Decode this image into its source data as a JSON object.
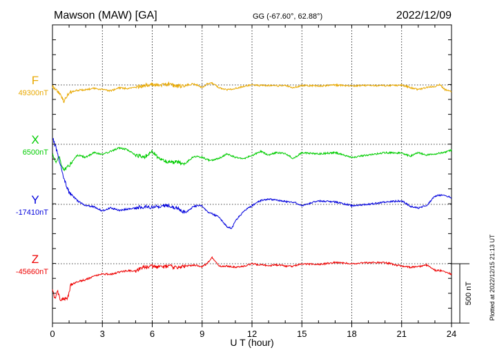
{
  "header": {
    "station": "Mawson (MAW)  [GA]",
    "coords": "GG (-67.60°,  62.88°)",
    "date": "2022/12/09"
  },
  "footer": {
    "plotted": "Plotted at 2022/12/15 21:13 UT"
  },
  "chart_data": {
    "type": "line",
    "xlabel": "U T (hour)",
    "xlim": [
      0,
      24
    ],
    "xticks": [
      "0",
      "3",
      "6",
      "9",
      "12",
      "15",
      "18",
      "21",
      "24"
    ],
    "grid": true,
    "scale_bar": {
      "label": "500 nT",
      "value_nT": 500
    },
    "colors": {
      "F": "#e8a800",
      "X": "#00cc00",
      "Y": "#0000dd",
      "Z": "#ee0000"
    },
    "series": [
      {
        "name": "F",
        "baseline_label": "49300nT",
        "baseline_nT": 49300,
        "points": [
          [
            0,
            -12
          ],
          [
            0.3,
            -50
          ],
          [
            0.5,
            -90
          ],
          [
            0.7,
            -140
          ],
          [
            0.9,
            -90
          ],
          [
            1.1,
            -60
          ],
          [
            1.5,
            -45
          ],
          [
            2,
            -40
          ],
          [
            2.5,
            -30
          ],
          [
            3,
            -38
          ],
          [
            3.5,
            -50
          ],
          [
            4,
            -25
          ],
          [
            4.5,
            -30
          ],
          [
            5,
            -22
          ],
          [
            5.5,
            -8
          ],
          [
            6,
            6
          ],
          [
            6.5,
            -5
          ],
          [
            7,
            8
          ],
          [
            7.5,
            -12
          ],
          [
            8,
            -2
          ],
          [
            8.5,
            10
          ],
          [
            9,
            -22
          ],
          [
            9.3,
            8
          ],
          [
            9.6,
            14
          ],
          [
            10,
            -22
          ],
          [
            10.5,
            -40
          ],
          [
            11,
            -30
          ],
          [
            11.5,
            -12
          ],
          [
            12,
            0
          ],
          [
            12.5,
            -6
          ],
          [
            13,
            -4
          ],
          [
            13.5,
            -8
          ],
          [
            14,
            -6
          ],
          [
            14.5,
            -22
          ],
          [
            15,
            -4
          ],
          [
            16,
            -8
          ],
          [
            17,
            -2
          ],
          [
            18,
            -8
          ],
          [
            19,
            -5
          ],
          [
            20,
            -6
          ],
          [
            21,
            -2
          ],
          [
            22,
            -40
          ],
          [
            22.5,
            -20
          ],
          [
            23,
            -12
          ],
          [
            23.3,
            4
          ],
          [
            23.6,
            -40
          ],
          [
            24,
            -55
          ]
        ]
      },
      {
        "name": "X",
        "baseline_label": "6500nT",
        "baseline_nT": 6500,
        "points": [
          [
            0,
            -80
          ],
          [
            0.2,
            -150
          ],
          [
            0.4,
            -100
          ],
          [
            0.6,
            -200
          ],
          [
            0.8,
            -210
          ],
          [
            1,
            -180
          ],
          [
            1.5,
            -90
          ],
          [
            2,
            -110
          ],
          [
            2.5,
            -70
          ],
          [
            3,
            -85
          ],
          [
            3.5,
            -60
          ],
          [
            4,
            -30
          ],
          [
            4.5,
            -45
          ],
          [
            5,
            -90
          ],
          [
            5.5,
            -110
          ],
          [
            6,
            -60
          ],
          [
            6.5,
            -130
          ],
          [
            7,
            -150
          ],
          [
            7.5,
            -150
          ],
          [
            8,
            -160
          ],
          [
            8.5,
            -100
          ],
          [
            9,
            -110
          ],
          [
            9.5,
            -140
          ],
          [
            10,
            -120
          ],
          [
            10.5,
            -80
          ],
          [
            11,
            -110
          ],
          [
            11.5,
            -120
          ],
          [
            12,
            -95
          ],
          [
            12.5,
            -60
          ],
          [
            13,
            -90
          ],
          [
            13.5,
            -70
          ],
          [
            14,
            -80
          ],
          [
            14.5,
            -120
          ],
          [
            15,
            -70
          ],
          [
            16,
            -80
          ],
          [
            17,
            -70
          ],
          [
            18,
            -110
          ],
          [
            19,
            -90
          ],
          [
            20,
            -70
          ],
          [
            21,
            -75
          ],
          [
            21.5,
            -100
          ],
          [
            22,
            -70
          ],
          [
            22.5,
            -90
          ],
          [
            23,
            -80
          ],
          [
            23.5,
            -70
          ],
          [
            24,
            -50
          ]
        ]
      },
      {
        "name": "Y",
        "baseline_label": "-17410nT",
        "baseline_nT": -17410,
        "points": [
          [
            0,
            560
          ],
          [
            0.2,
            480
          ],
          [
            0.4,
            380
          ],
          [
            0.6,
            260
          ],
          [
            0.8,
            170
          ],
          [
            1,
            100
          ],
          [
            1.5,
            30
          ],
          [
            2,
            -10
          ],
          [
            2.5,
            -20
          ],
          [
            3,
            -55
          ],
          [
            3.5,
            -30
          ],
          [
            4,
            -50
          ],
          [
            4.5,
            -40
          ],
          [
            5,
            -30
          ],
          [
            5.5,
            -20
          ],
          [
            6,
            -25
          ],
          [
            6.5,
            -15
          ],
          [
            7,
            -10
          ],
          [
            7.5,
            -30
          ],
          [
            8,
            -70
          ],
          [
            8.5,
            -15
          ],
          [
            9,
            -10
          ],
          [
            9.3,
            -60
          ],
          [
            9.6,
            -80
          ],
          [
            10,
            -105
          ],
          [
            10.5,
            -190
          ],
          [
            10.8,
            -200
          ],
          [
            11,
            -140
          ],
          [
            11.5,
            -60
          ],
          [
            12,
            -10
          ],
          [
            12.5,
            30
          ],
          [
            13,
            45
          ],
          [
            13.5,
            35
          ],
          [
            14,
            25
          ],
          [
            14.5,
            20
          ],
          [
            15,
            -10
          ],
          [
            16,
            30
          ],
          [
            17,
            20
          ],
          [
            18,
            -10
          ],
          [
            19,
            0
          ],
          [
            20,
            20
          ],
          [
            21,
            30
          ],
          [
            21.5,
            -15
          ],
          [
            22,
            -30
          ],
          [
            22.5,
            -10
          ],
          [
            23,
            70
          ],
          [
            23.5,
            80
          ],
          [
            24,
            55
          ]
        ]
      },
      {
        "name": "Z",
        "baseline_label": "-45660nT",
        "baseline_nT": -45660,
        "points": [
          [
            0,
            -210
          ],
          [
            0.15,
            -300
          ],
          [
            0.3,
            -230
          ],
          [
            0.5,
            -310
          ],
          [
            0.7,
            -290
          ],
          [
            0.9,
            -300
          ],
          [
            1.1,
            -180
          ],
          [
            1.5,
            -150
          ],
          [
            2,
            -135
          ],
          [
            2.5,
            -105
          ],
          [
            3,
            -85
          ],
          [
            3.5,
            -90
          ],
          [
            4,
            -70
          ],
          [
            4.5,
            -60
          ],
          [
            5,
            -60
          ],
          [
            5.5,
            -30
          ],
          [
            6,
            -20
          ],
          [
            6.5,
            -30
          ],
          [
            7,
            -20
          ],
          [
            7.5,
            -35
          ],
          [
            8,
            -20
          ],
          [
            8.5,
            -10
          ],
          [
            9,
            -25
          ],
          [
            9.3,
            0
          ],
          [
            9.6,
            50
          ],
          [
            10,
            -20
          ],
          [
            10.5,
            -20
          ],
          [
            11,
            -30
          ],
          [
            11.5,
            -20
          ],
          [
            12,
            0
          ],
          [
            12.5,
            -10
          ],
          [
            13,
            -15
          ],
          [
            13.5,
            -10
          ],
          [
            14,
            -20
          ],
          [
            14.5,
            -20
          ],
          [
            15,
            0
          ],
          [
            16,
            -5
          ],
          [
            17,
            10
          ],
          [
            18,
            0
          ],
          [
            19,
            10
          ],
          [
            20,
            10
          ],
          [
            21,
            -20
          ],
          [
            21.5,
            -30
          ],
          [
            22,
            -25
          ],
          [
            22.5,
            -10
          ],
          [
            23,
            -55
          ],
          [
            23.5,
            -60
          ],
          [
            24,
            -90
          ]
        ]
      }
    ]
  }
}
